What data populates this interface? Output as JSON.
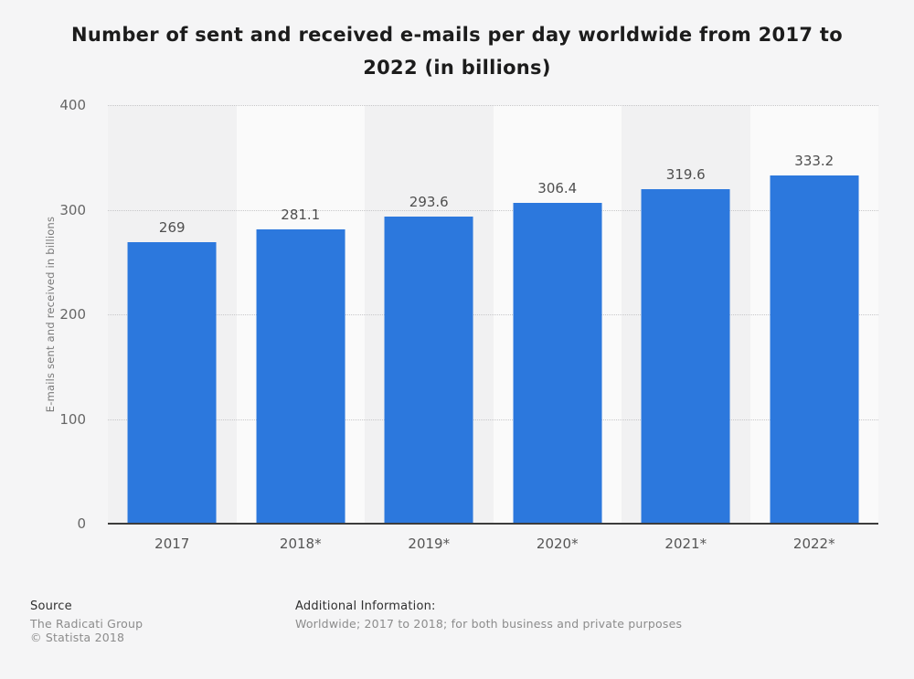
{
  "chart_data": {
    "type": "bar",
    "title": "Number of sent and received e-mails per day worldwide from 2017 to 2022 (in billions)",
    "categories": [
      "2017",
      "2018*",
      "2019*",
      "2020*",
      "2021*",
      "2022*"
    ],
    "values": [
      269,
      281.1,
      293.6,
      306.4,
      319.6,
      333.2
    ],
    "value_labels": [
      "269",
      "281.1",
      "293.6",
      "306.4",
      "319.6",
      "333.2"
    ],
    "xlabel": "",
    "ylabel": "E-mails sent and received in billions",
    "ylim": [
      0,
      400
    ],
    "yticks": [
      0,
      100,
      200,
      300,
      400
    ],
    "grid": "horizontal-dotted",
    "legend": "none",
    "bar_color": "#2c78dd"
  },
  "colors": {
    "background": "#f5f5f6",
    "bar": "#2c78dd",
    "stripe_odd": "#f1f1f2",
    "stripe_even": "#fafafa",
    "gridline": "#c7c7c9",
    "axis_line": "#3c3c3c",
    "title_text": "#1c1c1c",
    "tick_text": "#666666",
    "value_text": "#4f4f4f"
  },
  "footer": {
    "source_label": "Source",
    "source_lines": [
      "The Radicati Group",
      "© Statista 2018"
    ],
    "additional_label": "Additional Information:",
    "additional_text": "Worldwide; 2017 to 2018; for both business and private purposes"
  }
}
